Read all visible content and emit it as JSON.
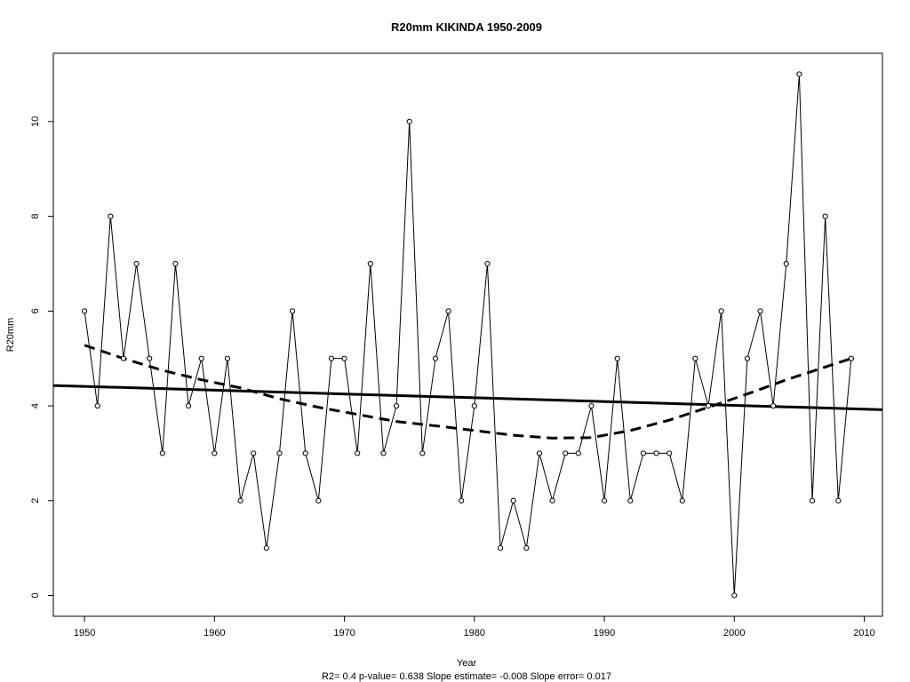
{
  "chart_data": {
    "type": "line",
    "title": "R20mm    KIKINDA 1950-2009",
    "xlabel": "Year",
    "ylabel": "R20mm",
    "footer": "R2= 0.4  p-value= 0.638  Slope estimate= -0.008  Slope error= 0.017",
    "xlim": [
      1947.6,
      2011.4
    ],
    "ylim": [
      -0.44,
      11.44
    ],
    "x_ticks": [
      1950,
      1960,
      1970,
      1980,
      1990,
      2000,
      2010
    ],
    "y_ticks": [
      0,
      2,
      4,
      6,
      8,
      10
    ],
    "grid": false,
    "legend": "none",
    "series": [
      {
        "style": "thin-line-with-open-circles",
        "x": [
          1950,
          1951,
          1952,
          1953,
          1954,
          1955,
          1956,
          1957,
          1958,
          1959,
          1960,
          1961,
          1962,
          1963,
          1964,
          1965,
          1966,
          1967,
          1968,
          1969,
          1970,
          1971,
          1972,
          1973,
          1974,
          1975,
          1976,
          1977,
          1978,
          1979,
          1980,
          1981,
          1982,
          1983,
          1984,
          1985,
          1986,
          1987,
          1988,
          1989,
          1990,
          1991,
          1992,
          1993,
          1994,
          1995,
          1996,
          1997,
          1998,
          1999,
          2000,
          2001,
          2002,
          2003,
          2004,
          2005,
          2006,
          2007,
          2008,
          2009
        ],
        "values": [
          6,
          4,
          8,
          5,
          7,
          5,
          3,
          7,
          4,
          5,
          3,
          5,
          2,
          3,
          1,
          3,
          6,
          3,
          2,
          5,
          5,
          3,
          7,
          3,
          4,
          10,
          3,
          5,
          6,
          2,
          4,
          7,
          1,
          2,
          1,
          3,
          2,
          3,
          3,
          4,
          2,
          5,
          2,
          3,
          3,
          3,
          2,
          5,
          4,
          6,
          0,
          5,
          6,
          4,
          7,
          11,
          2,
          8,
          2,
          5
        ]
      },
      {
        "style": "thick-solid-linear-trend",
        "x": [
          1947.6,
          2011.4
        ],
        "values": [
          4.43,
          3.92
        ]
      },
      {
        "style": "thick-dashed-smooth-trend",
        "x": [
          1950,
          1953,
          1956,
          1959,
          1962,
          1965,
          1968,
          1971,
          1974,
          1977,
          1980,
          1983,
          1986,
          1989,
          1992,
          1995,
          1998,
          2001,
          2004,
          2007,
          2009
        ],
        "values": [
          5.28,
          5.0,
          4.75,
          4.55,
          4.38,
          4.15,
          3.97,
          3.82,
          3.67,
          3.58,
          3.48,
          3.38,
          3.32,
          3.33,
          3.48,
          3.7,
          3.97,
          4.25,
          4.55,
          4.82,
          5.0
        ]
      }
    ]
  }
}
